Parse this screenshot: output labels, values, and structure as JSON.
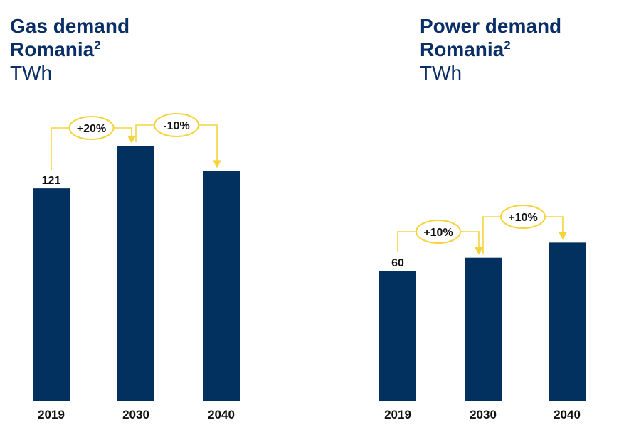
{
  "colors": {
    "bar": "#03315f",
    "accent": "#f5d33c",
    "title": "#0a2f66",
    "axis": "#777777",
    "text": "#111111"
  },
  "chart_data": [
    {
      "type": "bar",
      "title": "Gas demand",
      "subtitle": "Romania",
      "subtitle_sup": "2",
      "unit": "TWh",
      "categories": [
        "2019",
        "2030",
        "2040"
      ],
      "values": [
        121,
        145,
        131
      ],
      "data_labels": [
        "121",
        "",
        ""
      ],
      "annotations": [
        {
          "from": 0,
          "to": 1,
          "label": "+20%"
        },
        {
          "from": 1,
          "to": 2,
          "label": "-10%"
        }
      ]
    },
    {
      "type": "bar",
      "title": "Power demand",
      "subtitle": "Romania",
      "subtitle_sup": "2",
      "unit": "TWh",
      "categories": [
        "2019",
        "2030",
        "2040"
      ],
      "values": [
        60,
        66,
        73
      ],
      "data_labels": [
        "60",
        "",
        ""
      ],
      "annotations": [
        {
          "from": 0,
          "to": 1,
          "label": "+10%"
        },
        {
          "from": 1,
          "to": 2,
          "label": "+10%"
        }
      ]
    }
  ]
}
